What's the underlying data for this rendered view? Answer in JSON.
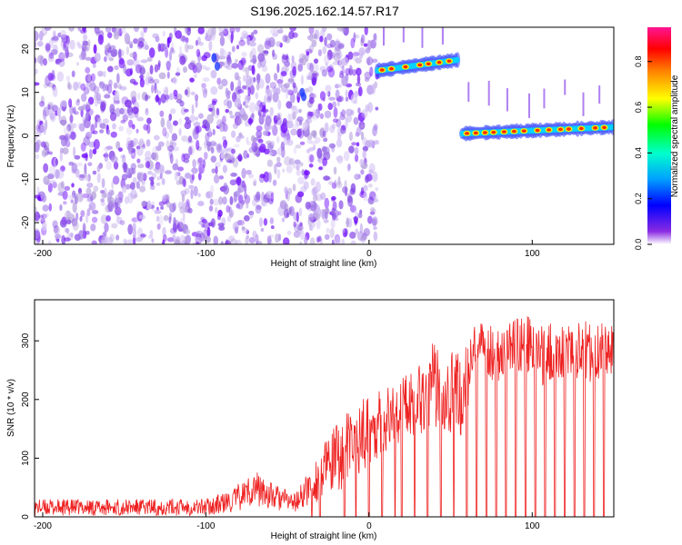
{
  "figure": {
    "title": "S196.2025.162.14.57.R17"
  },
  "chart_data": [
    {
      "type": "heatmap",
      "xlabel": "Height of straight line (km)",
      "ylabel": "Frequency (Hz)",
      "xlim": [
        -205,
        150
      ],
      "ylim": [
        -25,
        25
      ],
      "x_ticks": [
        -200,
        -100,
        0,
        100
      ],
      "y_ticks": [
        -20,
        -10,
        0,
        10,
        20
      ],
      "colorbar": {
        "label": "Normalized spectral amplitude",
        "range": [
          0,
          0.95
        ],
        "ticks": [
          0.0,
          0.2,
          0.4,
          0.6,
          0.8
        ],
        "colormap": [
          "#ffffff",
          "#6a00ff",
          "#0000ff",
          "#00ffff",
          "#00ff00",
          "#ffff00",
          "#ff8000",
          "#ff0000",
          "#ff1493"
        ]
      },
      "regions": [
        {
          "x_range": [
            -205,
            5
          ],
          "description": "scattered noise",
          "amplitude": [
            0.05,
            0.2
          ]
        },
        {
          "x_range": [
            5,
            55
          ],
          "frequency_hz": 16,
          "frequency_drift_hz": [
            15,
            17.5
          ],
          "peak_amplitude": 0.9
        },
        {
          "x_range": [
            57,
            150
          ],
          "frequency_hz": 1.5,
          "frequency_drift_hz": [
            0.5,
            2
          ],
          "peak_amplitude": 0.9
        }
      ]
    },
    {
      "type": "line",
      "xlabel": "Height of straight line (km)",
      "ylabel": "SNR (10 * v/v)",
      "xlim": [
        -205,
        150
      ],
      "ylim": [
        0,
        370
      ],
      "x_ticks": [
        -200,
        -100,
        0,
        100
      ],
      "y_ticks": [
        0,
        100,
        200,
        300
      ],
      "color": "#ee2222",
      "envelope": [
        {
          "x": -205,
          "low": 2,
          "high": 30
        },
        {
          "x": -150,
          "low": 2,
          "high": 30
        },
        {
          "x": -100,
          "low": 2,
          "high": 32
        },
        {
          "x": -85,
          "low": 5,
          "high": 45
        },
        {
          "x": -70,
          "low": 20,
          "high": 80
        },
        {
          "x": -60,
          "low": 10,
          "high": 60
        },
        {
          "x": -45,
          "low": 8,
          "high": 40
        },
        {
          "x": -35,
          "low": 20,
          "high": 90
        },
        {
          "x": -20,
          "low": 40,
          "high": 160
        },
        {
          "x": -10,
          "low": 60,
          "high": 190
        },
        {
          "x": 0,
          "low": 90,
          "high": 210
        },
        {
          "x": 10,
          "low": 110,
          "high": 220
        },
        {
          "x": 20,
          "low": 130,
          "high": 240
        },
        {
          "x": 30,
          "low": 140,
          "high": 270
        },
        {
          "x": 40,
          "low": 150,
          "high": 300
        },
        {
          "x": 50,
          "low": 140,
          "high": 290
        },
        {
          "x": 57,
          "low": 130,
          "high": 280
        },
        {
          "x": 65,
          "low": 240,
          "high": 330
        },
        {
          "x": 80,
          "low": 230,
          "high": 330
        },
        {
          "x": 95,
          "low": 250,
          "high": 345
        },
        {
          "x": 105,
          "low": 220,
          "high": 330
        },
        {
          "x": 120,
          "low": 240,
          "high": 330
        },
        {
          "x": 135,
          "low": 230,
          "high": 335
        },
        {
          "x": 150,
          "low": 240,
          "high": 330
        }
      ],
      "dropouts_to_zero": [
        -35,
        -30,
        -15,
        -8,
        0,
        8,
        16,
        20,
        28,
        36,
        44,
        52,
        60,
        66,
        72,
        78,
        84,
        90,
        96,
        102,
        108,
        114,
        120,
        126,
        132,
        138,
        144
      ]
    }
  ]
}
